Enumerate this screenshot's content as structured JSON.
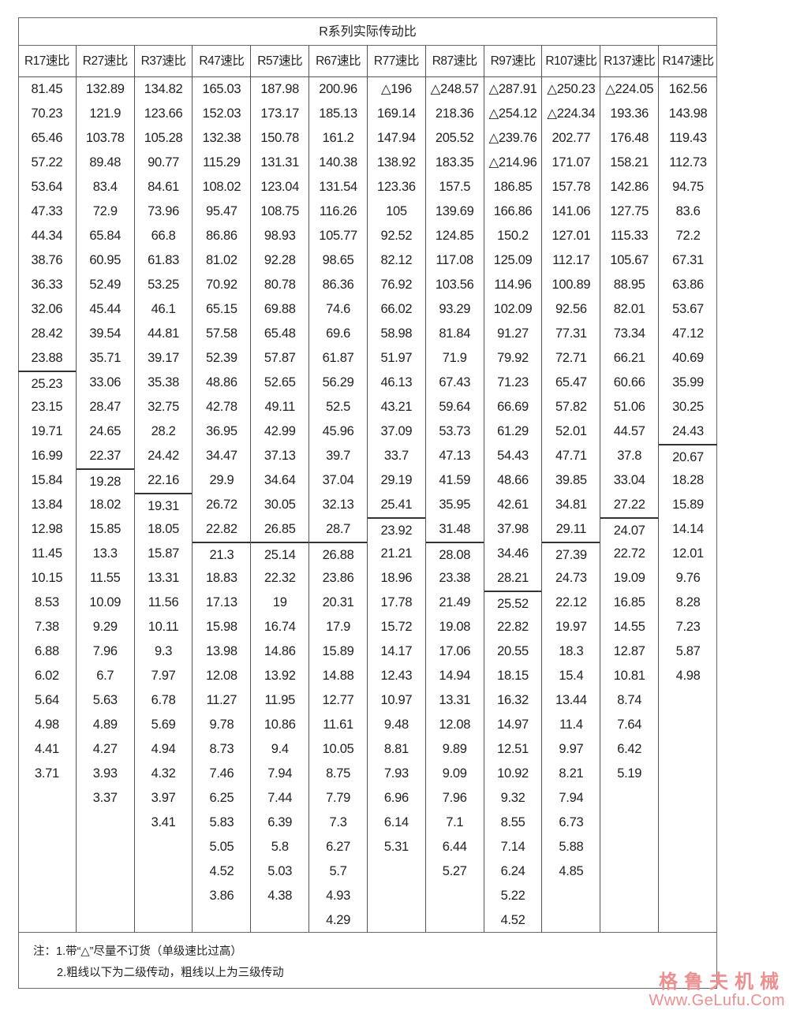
{
  "title": "R系列实际传动比",
  "columns": [
    {
      "header": "R17速比",
      "two_stage_start_index": 12,
      "values": [
        "81.45",
        "70.23",
        "65.46",
        "57.22",
        "53.64",
        "47.33",
        "44.34",
        "38.76",
        "36.33",
        "32.06",
        "28.42",
        "23.88",
        "25.23",
        "23.15",
        "19.71",
        "16.99",
        "15.84",
        "13.84",
        "12.98",
        "11.45",
        "10.15",
        "8.53",
        "7.38",
        "6.88",
        "6.02",
        "5.64",
        "4.98",
        "4.41",
        "3.71"
      ]
    },
    {
      "header": "R27速比",
      "two_stage_start_index": 16,
      "values": [
        "132.89",
        "121.9",
        "103.78",
        "89.48",
        "83.4",
        "72.9",
        "65.84",
        "60.95",
        "52.49",
        "45.44",
        "39.54",
        "35.71",
        "33.06",
        "28.47",
        "24.65",
        "22.37",
        "19.28",
        "18.02",
        "15.85",
        "13.3",
        "11.55",
        "10.09",
        "9.29",
        "7.96",
        "6.7",
        "5.63",
        "4.89",
        "4.27",
        "3.93",
        "3.37"
      ]
    },
    {
      "header": "R37速比",
      "two_stage_start_index": 17,
      "values": [
        "134.82",
        "123.66",
        "105.28",
        "90.77",
        "84.61",
        "73.96",
        "66.8",
        "61.83",
        "53.25",
        "46.1",
        "44.81",
        "39.17",
        "35.38",
        "32.75",
        "28.2",
        "24.42",
        "22.16",
        "19.31",
        "18.05",
        "15.87",
        "13.31",
        "11.56",
        "10.11",
        "9.3",
        "7.97",
        "6.78",
        "5.69",
        "4.94",
        "4.32",
        "3.97",
        "3.41"
      ]
    },
    {
      "header": "R47速比",
      "two_stage_start_index": 19,
      "values": [
        "165.03",
        "152.03",
        "132.38",
        "115.29",
        "108.02",
        "95.47",
        "86.86",
        "81.02",
        "70.92",
        "65.15",
        "57.58",
        "52.39",
        "48.86",
        "42.78",
        "36.95",
        "34.47",
        "29.9",
        "26.72",
        "22.82",
        "21.3",
        "18.83",
        "17.13",
        "15.98",
        "13.98",
        "12.08",
        "11.27",
        "9.78",
        "8.73",
        "7.46",
        "6.25",
        "5.83",
        "5.05",
        "4.52",
        "3.86"
      ]
    },
    {
      "header": "R57速比",
      "two_stage_start_index": 19,
      "values": [
        "187.98",
        "173.17",
        "150.78",
        "131.31",
        "123.04",
        "108.75",
        "98.93",
        "92.28",
        "80.78",
        "69.88",
        "65.48",
        "57.87",
        "52.65",
        "49.11",
        "42.99",
        "37.13",
        "34.64",
        "30.05",
        "26.85",
        "25.14",
        "22.32",
        "19",
        "16.74",
        "14.86",
        "13.92",
        "11.95",
        "10.86",
        "9.4",
        "7.94",
        "7.44",
        "6.39",
        "5.8",
        "5.03",
        "4.38"
      ]
    },
    {
      "header": "R67速比",
      "two_stage_start_index": 19,
      "values": [
        "200.96",
        "185.13",
        "161.2",
        "140.38",
        "131.54",
        "116.26",
        "105.77",
        "98.65",
        "86.36",
        "74.6",
        "69.6",
        "61.87",
        "56.29",
        "52.5",
        "45.96",
        "39.7",
        "37.04",
        "32.13",
        "28.7",
        "26.88",
        "23.86",
        "20.31",
        "17.9",
        "15.89",
        "14.88",
        "12.77",
        "11.61",
        "10.05",
        "8.75",
        "7.79",
        "7.3",
        "6.27",
        "5.7",
        "4.93",
        "4.29"
      ]
    },
    {
      "header": "R77速比",
      "two_stage_start_index": 18,
      "values": [
        "△196",
        "169.14",
        "147.94",
        "138.92",
        "123.36",
        "105",
        "92.52",
        "82.12",
        "76.92",
        "66.02",
        "58.98",
        "51.97",
        "46.13",
        "43.21",
        "37.09",
        "33.7",
        "29.19",
        "25.41",
        "23.92",
        "21.21",
        "18.96",
        "17.78",
        "15.72",
        "14.17",
        "12.43",
        "10.97",
        "9.48",
        "8.81",
        "7.93",
        "6.96",
        "6.14",
        "5.31"
      ]
    },
    {
      "header": "R87速比",
      "two_stage_start_index": 19,
      "values": [
        "△248.57",
        "218.36",
        "205.52",
        "183.35",
        "157.5",
        "139.69",
        "124.85",
        "117.08",
        "103.56",
        "93.29",
        "81.84",
        "71.9",
        "67.43",
        "59.64",
        "53.73",
        "47.13",
        "41.59",
        "35.95",
        "31.48",
        "28.08",
        "23.38",
        "21.49",
        "19.08",
        "17.06",
        "14.94",
        "13.31",
        "12.08",
        "9.89",
        "9.09",
        "7.96",
        "7.1",
        "6.44",
        "5.27"
      ]
    },
    {
      "header": "R97速比",
      "two_stage_start_index": 21,
      "values": [
        "△287.91",
        "△254.12",
        "△239.76",
        "△214.96",
        "186.85",
        "166.86",
        "150.2",
        "125.09",
        "114.96",
        "102.09",
        "91.27",
        "79.92",
        "71.23",
        "66.69",
        "61.29",
        "54.43",
        "48.66",
        "42.61",
        "37.98",
        "34.46",
        "28.21",
        "25.52",
        "22.82",
        "20.55",
        "18.15",
        "16.32",
        "14.97",
        "12.51",
        "10.92",
        "9.32",
        "8.55",
        "7.14",
        "6.24",
        "5.22",
        "4.52"
      ]
    },
    {
      "header": "R107速比",
      "two_stage_start_index": 19,
      "values": [
        "△250.23",
        "△224.34",
        "202.77",
        "171.07",
        "157.78",
        "141.06",
        "127.01",
        "112.17",
        "100.89",
        "92.56",
        "77.31",
        "72.71",
        "65.47",
        "57.82",
        "52.01",
        "47.71",
        "39.85",
        "34.81",
        "29.11",
        "27.39",
        "24.73",
        "22.12",
        "19.97",
        "18.3",
        "15.4",
        "13.44",
        "11.4",
        "9.97",
        "8.21",
        "7.94",
        "6.73",
        "5.88",
        "4.85"
      ]
    },
    {
      "header": "R137速比",
      "two_stage_start_index": 18,
      "values": [
        "△224.05",
        "193.36",
        "176.48",
        "158.21",
        "142.86",
        "127.75",
        "115.33",
        "105.67",
        "88.95",
        "82.01",
        "73.34",
        "66.21",
        "60.66",
        "51.06",
        "44.57",
        "37.8",
        "33.04",
        "27.22",
        "24.07",
        "22.72",
        "19.09",
        "16.85",
        "14.55",
        "12.87",
        "10.81",
        "8.74",
        "7.64",
        "6.42",
        "5.19"
      ]
    },
    {
      "header": "R147速比",
      "two_stage_start_index": 15,
      "values": [
        "162.56",
        "143.98",
        "119.43",
        "112.73",
        "94.75",
        "83.6",
        "72.2",
        "67.31",
        "63.86",
        "53.67",
        "47.12",
        "40.69",
        "35.99",
        "30.25",
        "24.43",
        "20.67",
        "18.28",
        "15.89",
        "14.14",
        "12.01",
        "9.76",
        "8.28",
        "7.23",
        "5.87",
        "4.98"
      ]
    }
  ],
  "notes": {
    "line1": "注：1.带“△”尽量不订货（单级速比过高）",
    "line2": "2.粗线以下为二级传动，粗线以上为三级传动"
  },
  "watermark": {
    "name": "格鲁夫机械",
    "url": "Www.GeLufu.Com",
    "color": "#ec8f8f"
  }
}
